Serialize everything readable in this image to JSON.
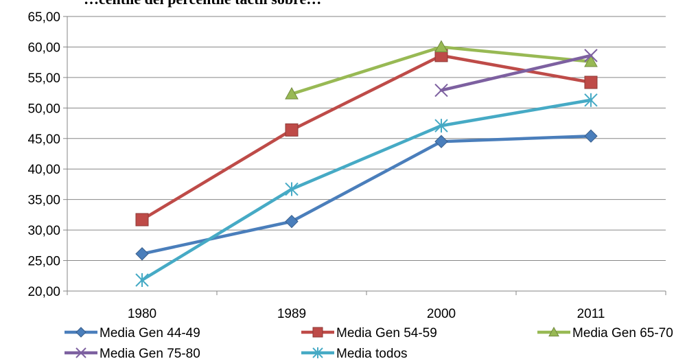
{
  "chart_data": {
    "type": "line",
    "title": "…centile del percentile táctil sobre…",
    "xlabel": "",
    "ylabel": "",
    "categories": [
      "1980",
      "1989",
      "2000",
      "2011"
    ],
    "ylim": [
      20,
      65
    ],
    "yticks": [
      "20,00",
      "25,00",
      "30,00",
      "35,00",
      "40,00",
      "45,00",
      "50,00",
      "55,00",
      "60,00",
      "65,00"
    ],
    "grid": true,
    "legend_position": "bottom",
    "series": [
      {
        "name": "Media Gen 44-49",
        "color": "#4A7EBB",
        "marker": "diamond",
        "values": [
          26.1,
          31.4,
          44.5,
          45.4
        ]
      },
      {
        "name": "Media Gen 54-59",
        "color": "#BE4B48",
        "marker": "square",
        "values": [
          31.7,
          46.4,
          58.6,
          54.2
        ]
      },
      {
        "name": "Media Gen 65-70",
        "color": "#98B954",
        "marker": "triangle",
        "values": [
          null,
          52.3,
          60.0,
          57.6
        ]
      },
      {
        "name": "Media Gen 75-80",
        "color": "#7D60A0",
        "marker": "x",
        "values": [
          null,
          null,
          52.9,
          58.6
        ]
      },
      {
        "name": "Media todos",
        "color": "#46AAC5",
        "marker": "asterisk",
        "values": [
          21.8,
          36.7,
          47.1,
          51.3
        ]
      }
    ]
  }
}
